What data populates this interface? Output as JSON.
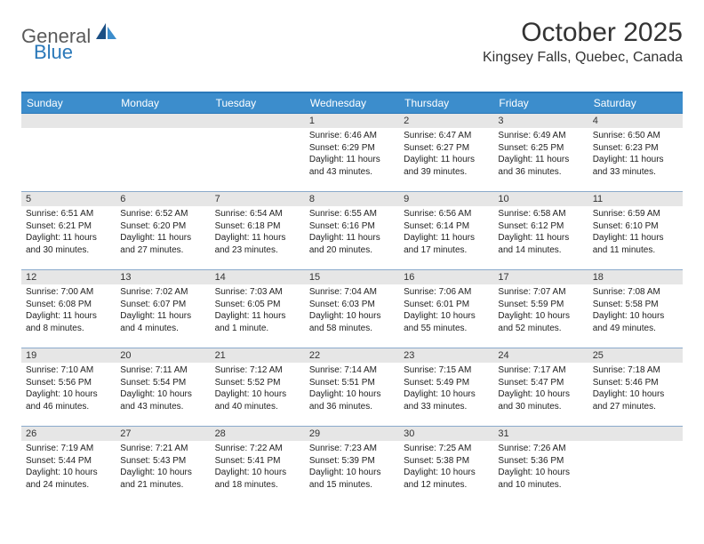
{
  "logo": {
    "general": "General",
    "blue": "Blue"
  },
  "title": "October 2025",
  "location": "Kingsey Falls, Quebec, Canada",
  "colors": {
    "header_bg": "#3c8dcc",
    "header_border": "#2a78b9",
    "row_border": "#8aaacb",
    "daynum_bg": "#e6e6e6",
    "text": "#222222"
  },
  "weekdays": [
    "Sunday",
    "Monday",
    "Tuesday",
    "Wednesday",
    "Thursday",
    "Friday",
    "Saturday"
  ],
  "weeks": [
    [
      null,
      null,
      null,
      {
        "n": "1",
        "sr": "6:46 AM",
        "ss": "6:29 PM",
        "dl": "11 hours and 43 minutes."
      },
      {
        "n": "2",
        "sr": "6:47 AM",
        "ss": "6:27 PM",
        "dl": "11 hours and 39 minutes."
      },
      {
        "n": "3",
        "sr": "6:49 AM",
        "ss": "6:25 PM",
        "dl": "11 hours and 36 minutes."
      },
      {
        "n": "4",
        "sr": "6:50 AM",
        "ss": "6:23 PM",
        "dl": "11 hours and 33 minutes."
      }
    ],
    [
      {
        "n": "5",
        "sr": "6:51 AM",
        "ss": "6:21 PM",
        "dl": "11 hours and 30 minutes."
      },
      {
        "n": "6",
        "sr": "6:52 AM",
        "ss": "6:20 PM",
        "dl": "11 hours and 27 minutes."
      },
      {
        "n": "7",
        "sr": "6:54 AM",
        "ss": "6:18 PM",
        "dl": "11 hours and 23 minutes."
      },
      {
        "n": "8",
        "sr": "6:55 AM",
        "ss": "6:16 PM",
        "dl": "11 hours and 20 minutes."
      },
      {
        "n": "9",
        "sr": "6:56 AM",
        "ss": "6:14 PM",
        "dl": "11 hours and 17 minutes."
      },
      {
        "n": "10",
        "sr": "6:58 AM",
        "ss": "6:12 PM",
        "dl": "11 hours and 14 minutes."
      },
      {
        "n": "11",
        "sr": "6:59 AM",
        "ss": "6:10 PM",
        "dl": "11 hours and 11 minutes."
      }
    ],
    [
      {
        "n": "12",
        "sr": "7:00 AM",
        "ss": "6:08 PM",
        "dl": "11 hours and 8 minutes."
      },
      {
        "n": "13",
        "sr": "7:02 AM",
        "ss": "6:07 PM",
        "dl": "11 hours and 4 minutes."
      },
      {
        "n": "14",
        "sr": "7:03 AM",
        "ss": "6:05 PM",
        "dl": "11 hours and 1 minute."
      },
      {
        "n": "15",
        "sr": "7:04 AM",
        "ss": "6:03 PM",
        "dl": "10 hours and 58 minutes."
      },
      {
        "n": "16",
        "sr": "7:06 AM",
        "ss": "6:01 PM",
        "dl": "10 hours and 55 minutes."
      },
      {
        "n": "17",
        "sr": "7:07 AM",
        "ss": "5:59 PM",
        "dl": "10 hours and 52 minutes."
      },
      {
        "n": "18",
        "sr": "7:08 AM",
        "ss": "5:58 PM",
        "dl": "10 hours and 49 minutes."
      }
    ],
    [
      {
        "n": "19",
        "sr": "7:10 AM",
        "ss": "5:56 PM",
        "dl": "10 hours and 46 minutes."
      },
      {
        "n": "20",
        "sr": "7:11 AM",
        "ss": "5:54 PM",
        "dl": "10 hours and 43 minutes."
      },
      {
        "n": "21",
        "sr": "7:12 AM",
        "ss": "5:52 PM",
        "dl": "10 hours and 40 minutes."
      },
      {
        "n": "22",
        "sr": "7:14 AM",
        "ss": "5:51 PM",
        "dl": "10 hours and 36 minutes."
      },
      {
        "n": "23",
        "sr": "7:15 AM",
        "ss": "5:49 PM",
        "dl": "10 hours and 33 minutes."
      },
      {
        "n": "24",
        "sr": "7:17 AM",
        "ss": "5:47 PM",
        "dl": "10 hours and 30 minutes."
      },
      {
        "n": "25",
        "sr": "7:18 AM",
        "ss": "5:46 PM",
        "dl": "10 hours and 27 minutes."
      }
    ],
    [
      {
        "n": "26",
        "sr": "7:19 AM",
        "ss": "5:44 PM",
        "dl": "10 hours and 24 minutes."
      },
      {
        "n": "27",
        "sr": "7:21 AM",
        "ss": "5:43 PM",
        "dl": "10 hours and 21 minutes."
      },
      {
        "n": "28",
        "sr": "7:22 AM",
        "ss": "5:41 PM",
        "dl": "10 hours and 18 minutes."
      },
      {
        "n": "29",
        "sr": "7:23 AM",
        "ss": "5:39 PM",
        "dl": "10 hours and 15 minutes."
      },
      {
        "n": "30",
        "sr": "7:25 AM",
        "ss": "5:38 PM",
        "dl": "10 hours and 12 minutes."
      },
      {
        "n": "31",
        "sr": "7:26 AM",
        "ss": "5:36 PM",
        "dl": "10 hours and 10 minutes."
      },
      null
    ]
  ],
  "labels": {
    "sunrise": "Sunrise:",
    "sunset": "Sunset:",
    "daylight": "Daylight:"
  }
}
